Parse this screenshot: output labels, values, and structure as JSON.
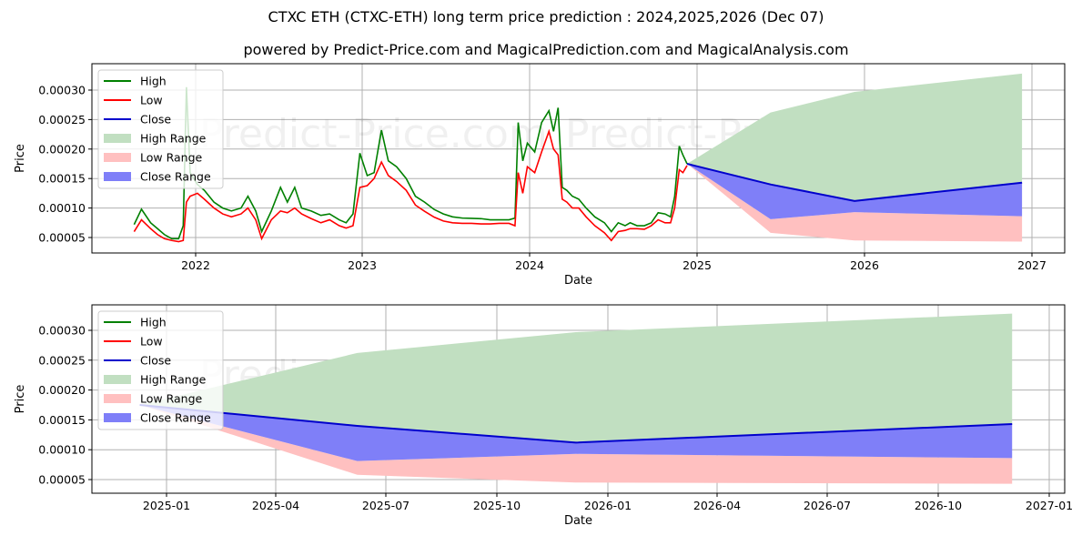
{
  "header": {
    "title": "CTXC ETH (CTXC-ETH) long term price prediction : 2024,2025,2026 (Dec 07)",
    "subtitle": "powered by Predict-Price.com and MagicalPrediction.com and MagicalAnalysis.com"
  },
  "watermark": "Predict-Price.com",
  "colors": {
    "high": "#008000",
    "low": "#ff0000",
    "close": "#0000cc",
    "high_range": "#c1dfc1",
    "low_range": "#ffc0c0",
    "close_range": "#7f7ff8",
    "grid": "#b0b0b0"
  },
  "legend": [
    "High",
    "Low",
    "Close",
    "High Range",
    "Low Range",
    "Close Range"
  ],
  "chart_data": [
    {
      "type": "line",
      "title": "Historical + prediction (long range)",
      "xlabel": "Date",
      "ylabel": "Price",
      "x_ticks": [
        "2022",
        "2023",
        "2024",
        "2025",
        "2026",
        "2027"
      ],
      "y_ticks": [
        "0.00005",
        "0.00010",
        "0.00015",
        "0.00020",
        "0.00025",
        "0.00030"
      ],
      "ylim": [
        2.7e-05,
        0.00034
      ],
      "xlim": [
        "2021-05-20",
        "2027-03-10"
      ],
      "grid": true,
      "legend_position": "upper left",
      "history": {
        "dates": [
          "2021-08-20",
          "2021-09-05",
          "2021-09-25",
          "2021-10-10",
          "2021-10-25",
          "2021-11-10",
          "2021-11-25",
          "2021-12-05",
          "2021-12-12",
          "2021-12-20",
          "2022-01-05",
          "2022-01-20",
          "2022-02-10",
          "2022-03-01",
          "2022-03-20",
          "2022-04-10",
          "2022-04-25",
          "2022-05-12",
          "2022-05-25",
          "2022-06-15",
          "2022-07-05",
          "2022-07-20",
          "2022-08-05",
          "2022-08-20",
          "2022-09-10",
          "2022-10-01",
          "2022-10-20",
          "2022-11-10",
          "2022-11-25",
          "2022-12-10",
          "2022-12-25",
          "2023-01-10",
          "2023-01-25",
          "2023-02-10",
          "2023-02-25",
          "2023-03-15",
          "2023-04-05",
          "2023-04-25",
          "2023-05-15",
          "2023-06-05",
          "2023-06-25",
          "2023-07-15",
          "2023-08-05",
          "2023-08-25",
          "2023-09-15",
          "2023-10-05",
          "2023-10-25",
          "2023-11-15",
          "2023-11-28",
          "2023-12-05",
          "2023-12-15",
          "2023-12-25",
          "2024-01-10",
          "2024-01-25",
          "2024-02-10",
          "2024-02-20",
          "2024-03-01",
          "2024-03-10",
          "2024-03-20",
          "2024-04-01",
          "2024-04-15",
          "2024-05-01",
          "2024-05-20",
          "2024-06-10",
          "2024-06-25",
          "2024-07-10",
          "2024-07-25",
          "2024-08-05",
          "2024-08-20",
          "2024-09-05",
          "2024-09-20",
          "2024-10-05",
          "2024-10-20",
          "2024-11-01",
          "2024-11-10",
          "2024-11-20",
          "2024-11-28",
          "2024-12-07"
        ],
        "high": [
          7.2e-05,
          9.8e-05,
          7.5e-05,
          6.5e-05,
          5.5e-05,
          4.8e-05,
          4.8e-05,
          7e-05,
          0.000305,
          0.00016,
          0.00014,
          0.00013,
          0.00011,
          0.0001,
          9.5e-05,
          0.0001,
          0.00012,
          9.5e-05,
          6e-05,
          9.5e-05,
          0.000135,
          0.00011,
          0.000135,
          0.0001,
          9.5e-05,
          8.75e-05,
          9e-05,
          8e-05,
          7.5e-05,
          9e-05,
          0.000193,
          0.000155,
          0.00016,
          0.000232,
          0.00018,
          0.00017,
          0.00015,
          0.00012,
          0.00011,
          9.75e-05,
          9e-05,
          8.5e-05,
          8.3e-05,
          8.25e-05,
          8.2e-05,
          8e-05,
          8e-05,
          8e-05,
          8.3e-05,
          0.000245,
          0.00018,
          0.00021,
          0.000195,
          0.000245,
          0.000265,
          0.00023,
          0.00027,
          0.000135,
          0.00013,
          0.00012,
          0.000115,
          0.0001,
          8.5e-05,
          7.5e-05,
          6e-05,
          7.5e-05,
          7e-05,
          7.5e-05,
          7e-05,
          7e-05,
          7.5e-05,
          9.2e-05,
          9e-05,
          8.5e-05,
          0.00012,
          0.000205,
          0.00019,
          0.000175
        ],
        "low": [
          6e-05,
          8e-05,
          6.5e-05,
          5.5e-05,
          4.8e-05,
          4.5e-05,
          4.3e-05,
          4.5e-05,
          0.00011,
          0.00012,
          0.000125,
          0.000115,
          0.0001,
          9e-05,
          8.5e-05,
          9e-05,
          0.0001,
          8e-05,
          4.8e-05,
          8e-05,
          9.5e-05,
          9.2e-05,
          0.0001,
          9e-05,
          8.2e-05,
          7.5e-05,
          8e-05,
          7e-05,
          6.6e-05,
          7e-05,
          0.000135,
          0.000138,
          0.00015,
          0.000178,
          0.000155,
          0.000145,
          0.00013,
          0.000105,
          9.45e-05,
          8.45e-05,
          7.8e-05,
          7.5e-05,
          7.4e-05,
          7.4e-05,
          7.3e-05,
          7.3e-05,
          7.4e-05,
          7.4e-05,
          7e-05,
          0.00016,
          0.000125,
          0.00017,
          0.00016,
          0.000195,
          0.00023,
          0.0002,
          0.00019,
          0.000115,
          0.00011,
          0.0001,
          0.0001,
          8.5e-05,
          7e-05,
          5.8e-05,
          4.5e-05,
          6e-05,
          6.2e-05,
          6.5e-05,
          6.5e-05,
          6.4e-05,
          7e-05,
          8e-05,
          7.5e-05,
          7.5e-05,
          0.0001,
          0.000165,
          0.00016,
          0.000172
        ]
      },
      "prediction": {
        "dates": [
          "2024-12-07",
          "2025-06-07",
          "2025-12-07",
          "2026-12-07"
        ],
        "high": [
          0.000175,
          0.000262,
          0.000297,
          0.000328
        ],
        "close": [
          0.000175,
          0.00014,
          0.000112,
          0.000143
        ],
        "close_range_low": [
          0.000175,
          8.1e-05,
          9.3e-05,
          8.6e-05
        ],
        "low": [
          0.000175,
          5.8e-05,
          4.5e-05,
          4.3e-05
        ]
      }
    },
    {
      "type": "area",
      "title": "Prediction detail",
      "xlabel": "Date",
      "ylabel": "Price",
      "x_ticks": [
        "2025-01",
        "2025-04",
        "2025-07",
        "2025-10",
        "2026-01",
        "2026-04",
        "2026-07",
        "2026-10",
        "2027-01"
      ],
      "y_ticks": [
        "0.00005",
        "0.00010",
        "0.00015",
        "0.00020",
        "0.00025",
        "0.00030"
      ],
      "ylim": [
        2.7e-05,
        0.00034
      ],
      "xlim": [
        "2024-10-28",
        "2027-01-20"
      ],
      "grid": true,
      "legend_position": "upper left",
      "series": [
        {
          "name": "High Range (upper)",
          "dates": [
            "2024-12-07",
            "2025-06-07",
            "2025-12-07",
            "2026-12-07"
          ],
          "values": [
            0.000175,
            0.000262,
            0.000297,
            0.000328
          ]
        },
        {
          "name": "Close",
          "dates": [
            "2024-12-07",
            "2025-06-07",
            "2025-12-07",
            "2026-12-07"
          ],
          "values": [
            0.000175,
            0.00014,
            0.000112,
            0.000143
          ]
        },
        {
          "name": "Close Range (lower)",
          "dates": [
            "2024-12-07",
            "2025-06-07",
            "2025-12-07",
            "2026-12-07"
          ],
          "values": [
            0.000175,
            8.1e-05,
            9.3e-05,
            8.6e-05
          ]
        },
        {
          "name": "Low Range (lower)",
          "dates": [
            "2024-12-07",
            "2025-06-07",
            "2025-12-07",
            "2026-12-07"
          ],
          "values": [
            0.000175,
            5.8e-05,
            4.5e-05,
            4.3e-05
          ]
        }
      ]
    }
  ]
}
